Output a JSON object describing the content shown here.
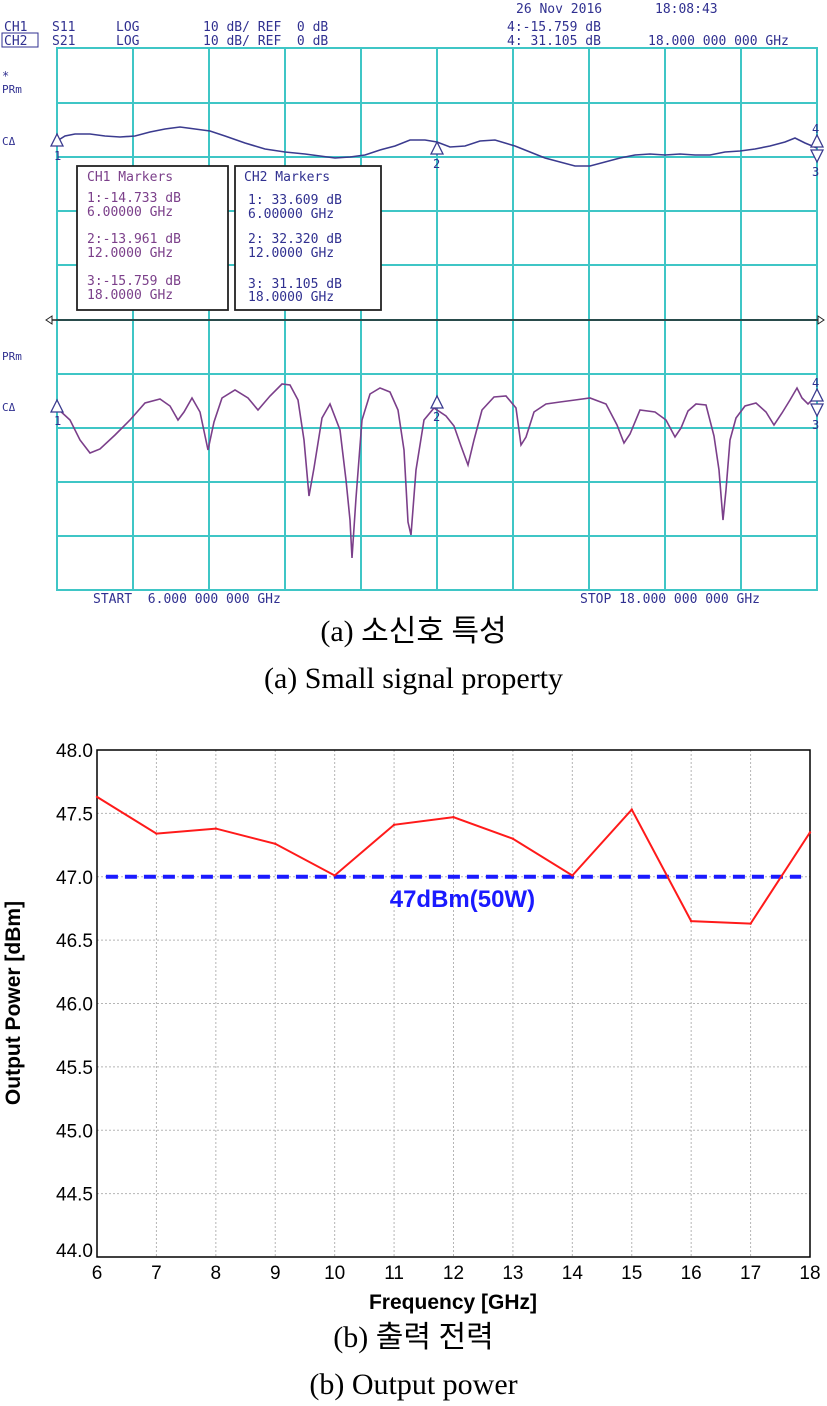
{
  "panel_a": {
    "header": {
      "date": "26 Nov 2016",
      "time": "18:08:43",
      "ch1": {
        "label": "CH1",
        "param": "S11",
        "format": "LOG",
        "scale": "10 dB/ REF  0 dB"
      },
      "ch2": {
        "label": "CH2",
        "param": "S21",
        "format": "LOG",
        "scale": "10 dB/ REF  0 dB"
      },
      "marker_ch1_readout": "4:-15.759 dB",
      "marker_ch2_readout": "4: 31.105 dB",
      "marker_freq": "18.000 000 000 GHz"
    },
    "side_labels": {
      "star": "*",
      "prm1": "PRm",
      "ca1": "CΔ",
      "prm2": "PRm",
      "ca2": "CΔ"
    },
    "markerbox_ch1": {
      "title": "CH1 Markers",
      "m1a": "1:-14.733 dB",
      "m1b": "6.00000 GHz",
      "m2a": "2:-13.961 dB",
      "m2b": "12.0000 GHz",
      "m3a": "3:-15.759 dB",
      "m3b": "18.0000 GHz"
    },
    "markerbox_ch2": {
      "title": "CH2 Markers",
      "m1a": "1: 33.609 dB",
      "m1b": "6.00000 GHz",
      "m2a": "2: 32.320 dB",
      "m2b": "12.0000 GHz",
      "m3a": "3: 31.105 dB",
      "m3b": "18.0000 GHz"
    },
    "start_label": "START  6.000 000 000 GHz",
    "stop_label": "STOP 18.000 000 000 GHz",
    "marker_numbers": {
      "m1": "1",
      "m2": "2",
      "m3": "3",
      "m4": "4"
    },
    "caption_ko": "(a) 소신호 특성",
    "caption_en": "(a) Small signal property",
    "colors": {
      "grid": "#3fc6c6",
      "trace1": "#3b3b8f",
      "trace2": "#7b3f8a",
      "text_ch": "#303090"
    }
  },
  "panel_b": {
    "caption_ko": "(b) 출력 전력",
    "caption_en": "(b) Output power"
  },
  "chart_data": {
    "type": "line",
    "xlabel": "Frequency [GHz]",
    "ylabel": "Output Power [dBm]",
    "x": [
      6,
      7,
      8,
      9,
      10,
      11,
      12,
      13,
      14,
      15,
      16,
      17,
      18
    ],
    "xlim": [
      6,
      18
    ],
    "ylim": [
      44.0,
      48.0
    ],
    "xticks": [
      "6",
      "7",
      "8",
      "9",
      "10",
      "11",
      "12",
      "13",
      "14",
      "15",
      "16",
      "17",
      "18"
    ],
    "yticks": [
      "44.0",
      "44.5",
      "45.0",
      "45.5",
      "46.0",
      "46.5",
      "47.0",
      "47.5",
      "48.0"
    ],
    "grid": true,
    "series": [
      {
        "values": [
          47.63,
          47.34,
          47.38,
          47.26,
          47.01,
          47.41,
          47.47,
          47.3,
          47.01,
          47.53,
          46.65,
          46.63,
          47.35
        ],
        "color": "#ff1a1a"
      }
    ],
    "reference_line": {
      "value": 47.0,
      "label": "47dBm(50W)",
      "color": "#1a1aff",
      "style": "dashed"
    }
  }
}
